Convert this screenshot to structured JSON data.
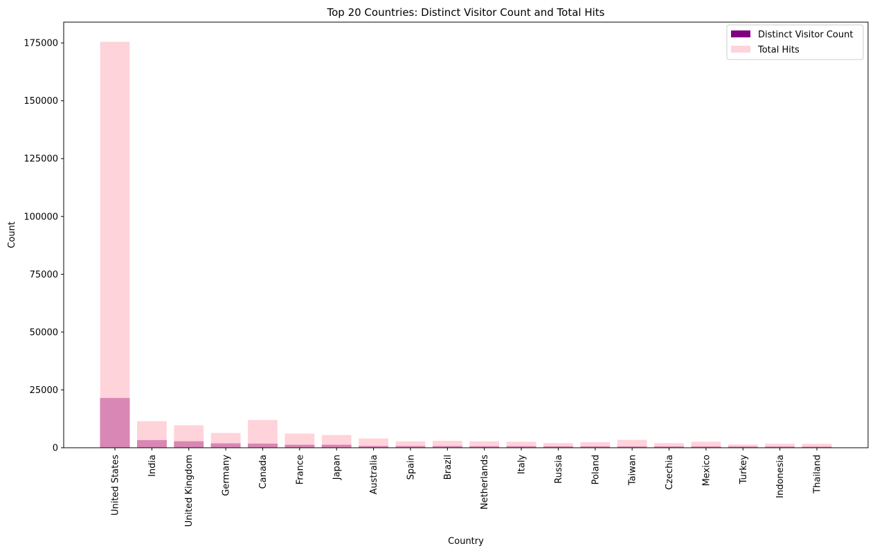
{
  "chart_data": {
    "type": "bar",
    "title": "Top 20 Countries: Distinct Visitor Count and Total Hits",
    "xlabel": "Country",
    "ylabel": "Count",
    "ylim": [
      0,
      184000
    ],
    "yticks": [
      0,
      25000,
      50000,
      75000,
      100000,
      125000,
      150000,
      175000
    ],
    "grid": false,
    "legend_position": "top-right",
    "categories": [
      "United States",
      "India",
      "United Kingdom",
      "Germany",
      "Canada",
      "France",
      "Japan",
      "Australia",
      "Spain",
      "Brazil",
      "Netherlands",
      "Italy",
      "Russia",
      "Poland",
      "Taiwan",
      "Czechia",
      "Mexico",
      "Turkey",
      "Indonesia",
      "Thailand"
    ],
    "series": [
      {
        "name": "Distinct Visitor Count",
        "color": "#800080",
        "alpha": 1.0,
        "values": [
          21500,
          3300,
          2800,
          1900,
          1800,
          1300,
          1300,
          750,
          700,
          700,
          650,
          650,
          600,
          600,
          550,
          550,
          550,
          500,
          500,
          450
        ]
      },
      {
        "name": "Total Hits",
        "color": "#ffc0cb",
        "alpha": 0.7,
        "values": [
          175500,
          11500,
          9700,
          6400,
          12000,
          6100,
          5500,
          4000,
          2800,
          3000,
          2800,
          2600,
          2000,
          2400,
          3400,
          2000,
          2600,
          1400,
          1700,
          1700
        ]
      }
    ]
  }
}
